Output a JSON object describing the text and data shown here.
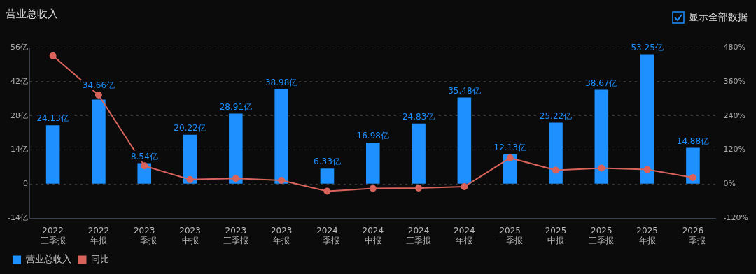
{
  "chart_data": {
    "type": "bar",
    "title": "营业总收入",
    "annotations": [
      "显示全部数据"
    ],
    "categories": [
      "2022\n三季报",
      "2022\n年报",
      "2023\n一季报",
      "2023\n中报",
      "2023\n三季报",
      "2023\n年报",
      "2024\n一季报",
      "2024\n中报",
      "2024\n三季报",
      "2024\n年报",
      "2025\n一季报",
      "2025\n中报",
      "2025\n三季报",
      "2025\n年报",
      "2026\n一季报"
    ],
    "series": [
      {
        "name": "营业总收入",
        "color": "#1e90ff",
        "values": [
          24.13,
          34.66,
          8.54,
          20.22,
          28.91,
          38.98,
          6.33,
          16.98,
          24.83,
          35.48,
          12.13,
          25.22,
          38.67,
          53.25,
          14.88
        ],
        "value_labels": [
          "24.13亿",
          "34.66亿",
          "8.54亿",
          "20.22亿",
          "28.91亿",
          "38.98亿",
          "6.33亿",
          "16.98亿",
          "24.83亿",
          "35.48亿",
          "12.13亿",
          "25.22亿",
          "38.67亿",
          "53.25亿",
          "14.88亿"
        ]
      },
      {
        "name": "同比",
        "type": "line",
        "axis": "y2",
        "color": "#d9635b",
        "marker": "circle",
        "values": [
          451,
          313,
          64,
          16,
          20,
          13,
          -25,
          -15,
          -14,
          -9,
          92,
          49,
          56,
          51,
          23
        ]
      }
    ],
    "ylim": [
      -14,
      56
    ],
    "yticks": [
      {
        "value": -14,
        "label": "-14亿"
      },
      {
        "value": 0,
        "label": "0"
      },
      {
        "value": 14,
        "label": "14亿"
      },
      {
        "value": 28,
        "label": "28亿"
      },
      {
        "value": 42,
        "label": "42亿"
      },
      {
        "value": 56,
        "label": "56亿"
      }
    ],
    "y2lim": [
      -120,
      480
    ],
    "y2ticks": [
      {
        "value": -120,
        "label": "-120%"
      },
      {
        "value": 0,
        "label": "0%"
      },
      {
        "value": 120,
        "label": "120%"
      },
      {
        "value": 240,
        "label": "240%"
      },
      {
        "value": 360,
        "label": "360%"
      },
      {
        "value": 480,
        "label": "480%"
      }
    ],
    "grid": "y",
    "legend": "bottom left"
  }
}
